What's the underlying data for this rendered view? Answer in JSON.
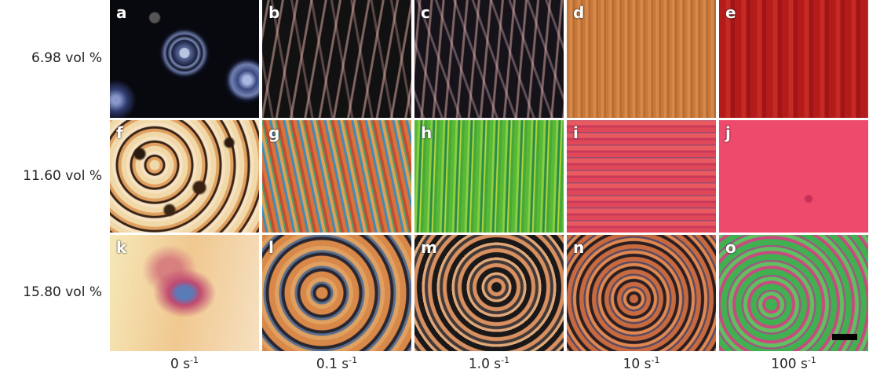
{
  "figure": {
    "rows": [
      "6.98 vol %",
      "11.60 vol %",
      "15.80 vol %"
    ],
    "columns": [
      {
        "text": "0 s",
        "sup": "-1"
      },
      {
        "text": "0.1 s",
        "sup": "-1"
      },
      {
        "text": "1.0 s",
        "sup": "-1"
      },
      {
        "text": "10 s",
        "sup": "-1"
      },
      {
        "text": "100 s",
        "sup": "-1"
      }
    ],
    "panels": [
      "a",
      "b",
      "c",
      "d",
      "e",
      "f",
      "g",
      "h",
      "i",
      "j",
      "k",
      "l",
      "m",
      "n",
      "o"
    ]
  }
}
